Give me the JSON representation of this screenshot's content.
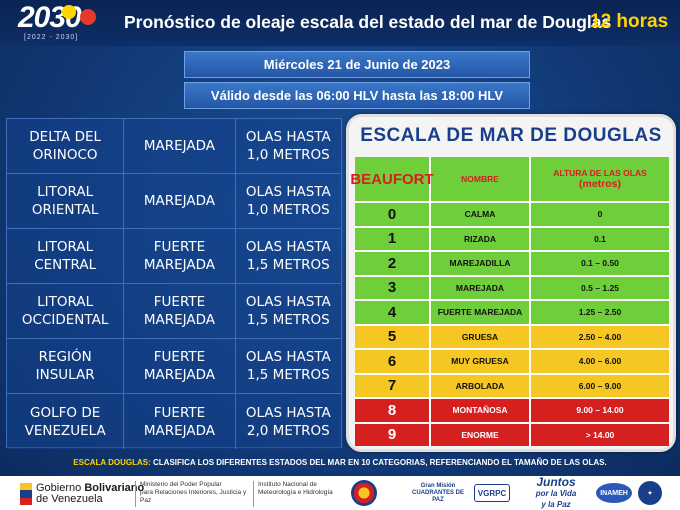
{
  "header": {
    "logo_year": "2030",
    "logo_period": "[2022 - 2030]",
    "title": "Pronóstico de oleaje escala del estado del mar de Douglas",
    "hours": "12 horas"
  },
  "date_line": "Miércoles 21 de Junio de 2023",
  "valid_line": "Válido desde las 06:00 HLV hasta las 18:00 HLV",
  "forecast": [
    {
      "region": "DELTA DEL ORINOCO",
      "state": "MAREJADA",
      "waves": "OLAS HASTA 1,0 METROS"
    },
    {
      "region": "LITORAL ORIENTAL",
      "state": "MAREJADA",
      "waves": "OLAS HASTA 1,0 METROS"
    },
    {
      "region": "LITORAL CENTRAL",
      "state": "FUERTE MAREJADA",
      "waves": "OLAS HASTA 1,5 METROS"
    },
    {
      "region": "LITORAL OCCIDENTAL",
      "state": "FUERTE MAREJADA",
      "waves": "OLAS HASTA 1,5 METROS"
    },
    {
      "region": "REGIÓN INSULAR",
      "state": "FUERTE MAREJADA",
      "waves": "OLAS HASTA 1,5 METROS"
    },
    {
      "region": "GOLFO DE VENEZUELA",
      "state": "FUERTE MAREJADA",
      "waves": "OLAS HASTA 2,0 METROS"
    }
  ],
  "scale": {
    "title": "ESCALA DE MAR DE DOUGLAS",
    "col_beaufort": "BEAUFORT",
    "col_name": "NOMBRE",
    "col_height": "ALTURA DE LAS OLAS",
    "col_height_unit": "(metros)",
    "rows": [
      {
        "level": "0",
        "name": "CALMA",
        "height": "0",
        "color": "#6fcf3a"
      },
      {
        "level": "1",
        "name": "RIZADA",
        "height": "0.1",
        "color": "#6fcf3a"
      },
      {
        "level": "2",
        "name": "MAREJADILLA",
        "height": "0.1 – 0.50",
        "color": "#6fcf3a"
      },
      {
        "level": "3",
        "name": "MAREJADA",
        "height": "0.5 – 1.25",
        "color": "#6fcf3a"
      },
      {
        "level": "4",
        "name": "FUERTE MAREJADA",
        "height": "1.25 – 2.50",
        "color": "#6fcf3a"
      },
      {
        "level": "5",
        "name": "GRUESA",
        "height": "2.50 – 4.00",
        "color": "#f6c722"
      },
      {
        "level": "6",
        "name": "MUY GRUESA",
        "height": "4.00 – 6.00",
        "color": "#f6c722"
      },
      {
        "level": "7",
        "name": "ARBOLADA",
        "height": "6.00 – 9.00",
        "color": "#f6c722"
      },
      {
        "level": "8",
        "name": "MONTAÑOSA",
        "height": "9.00 – 14.00",
        "color": "#d62020"
      },
      {
        "level": "9",
        "name": "ENORME",
        "height": "> 14.00",
        "color": "#d62020"
      }
    ]
  },
  "footnote": {
    "label": "ESCALA DOUGLAS:",
    "text": "CLASIFICA LOS DIFERENTES ESTADOS DEL MAR EN 10 CATEGORIAS, REFERENCIANDO EL TAMAÑO DE LAS OLAS."
  },
  "footer": {
    "gob_line1_prefix": "Gobierno ",
    "gob_line1_bold": "Bolivariano",
    "gob_line2": "de Venezuela",
    "ministry_line1": "Ministerio del Poder Popular",
    "ministry_line2": "para Relaciones Interiores, Justicia y Paz",
    "institute_line1": "Instituto Nacional de",
    "institute_line2": "Meteorología e Hidrología",
    "cuadrantes_line1": "Gran Misión",
    "cuadrantes_line2": "CUADRANTES DE PAZ",
    "vgrpc": "VGRPC",
    "juntos_line1": "Juntos",
    "juntos_line2": "por la Vida",
    "juntos_line3": "y la Paz",
    "mameh": "INAMEH"
  },
  "colors": {
    "green": "#6fcf3a",
    "yellow": "#f6c722",
    "red": "#d62020",
    "accent_yellow": "#ffd400"
  }
}
